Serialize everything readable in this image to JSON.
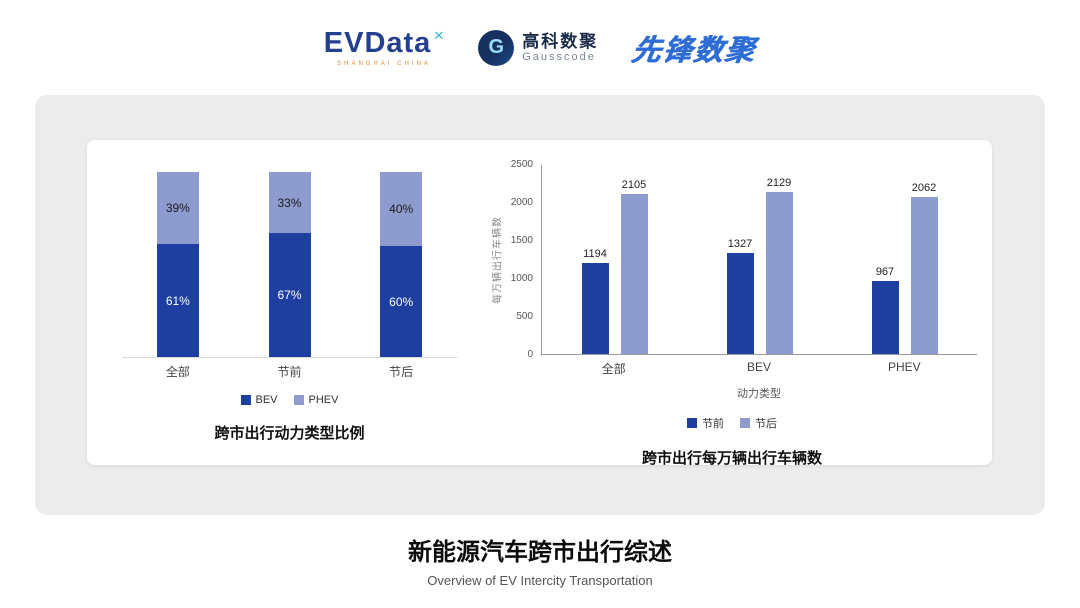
{
  "header": {
    "evdata": {
      "name": "EVData",
      "sup": "✕",
      "sub": "SHANGHAI CHINA"
    },
    "gausscode": {
      "icon": "G",
      "cn": "高科数聚",
      "en": "Gausscode"
    },
    "pioneer": "先锋数聚"
  },
  "colors": {
    "bev": "#1e3f9f",
    "phev": "#8e9bce"
  },
  "chart_data": [
    {
      "type": "bar",
      "stacked": true,
      "title": "跨市出行动力类型比例",
      "categories": [
        "全部",
        "节前",
        "节后"
      ],
      "series": [
        {
          "name": "BEV",
          "values": [
            61,
            67,
            60
          ],
          "unit": "%"
        },
        {
          "name": "PHEV",
          "values": [
            39,
            33,
            40
          ],
          "unit": "%"
        }
      ],
      "legend": [
        "BEV",
        "PHEV"
      ],
      "legend_position": "bottom",
      "grid": false
    },
    {
      "type": "bar",
      "grouped": true,
      "title": "跨市出行每万辆出行车辆数",
      "categories": [
        "全部",
        "BEV",
        "PHEV"
      ],
      "xlabel": "动力类型",
      "ylabel": "每万辆出行车辆数",
      "ylim": [
        0,
        2500
      ],
      "yticks": [
        0,
        500,
        1000,
        1500,
        2000,
        2500
      ],
      "series": [
        {
          "name": "节前",
          "values": [
            1194,
            1327,
            967
          ]
        },
        {
          "name": "节后",
          "values": [
            2105,
            2129,
            2062
          ]
        }
      ],
      "legend": [
        "节前",
        "节后"
      ],
      "legend_position": "bottom",
      "grid": false
    }
  ],
  "footer": {
    "title": "新能源汽车跨市出行综述",
    "subtitle": "Overview of EV Intercity Transportation"
  }
}
